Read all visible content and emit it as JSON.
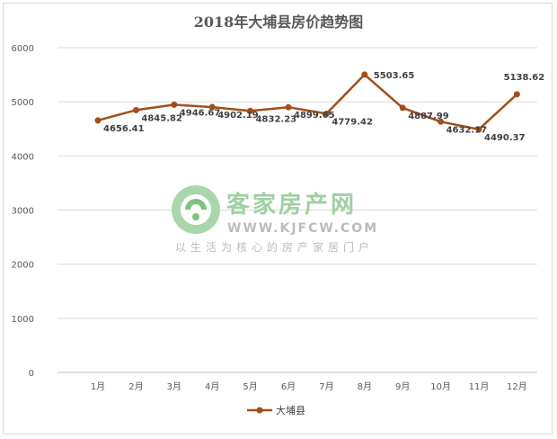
{
  "chart_data": {
    "type": "line",
    "title": "2018年大埔县房价趋势图",
    "categories": [
      "1月",
      "2月",
      "3月",
      "4月",
      "5月",
      "6月",
      "7月",
      "8月",
      "9月",
      "10月",
      "11月",
      "12月"
    ],
    "series": [
      {
        "name": "大埔县",
        "values": [
          4656.41,
          4845.82,
          4946.67,
          4902.19,
          4832.23,
          4899.65,
          4779.42,
          5503.65,
          4887.99,
          4632.17,
          4490.37,
          5138.62
        ],
        "color": "#a0501a"
      }
    ],
    "data_labels": [
      "4656.41",
      "4845.82",
      "4946.67",
      "4902.19",
      "4832.23",
      "4899.65",
      "4779.42",
      "5503.65",
      "4887.99",
      "4632.17",
      "4490.37",
      "5138.62"
    ],
    "ylim": [
      0,
      6000
    ],
    "yticks": [
      "0",
      "1000",
      "2000",
      "3000",
      "4000",
      "5000",
      "6000"
    ],
    "grid": true,
    "legend": "bottom"
  },
  "watermark": {
    "name": "客家房产网",
    "url": "WWW.KJFCW.COM",
    "slogan": "以生活为核心的房产家居门户"
  }
}
